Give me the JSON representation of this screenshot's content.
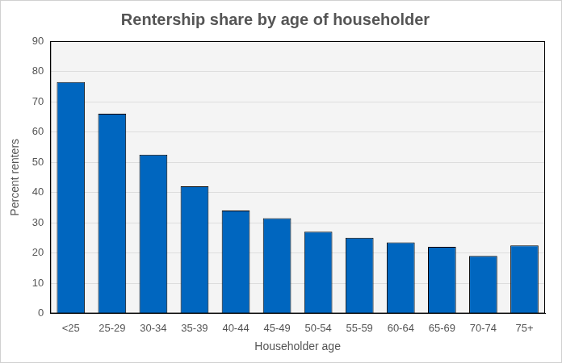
{
  "chart_data": {
    "type": "bar",
    "title": "Rentership share by age of householder",
    "categories": [
      "<25",
      "25-29",
      "30-34",
      "35-39",
      "40-44",
      "45-49",
      "50-54",
      "55-59",
      "60-64",
      "65-69",
      "70-74",
      "75+"
    ],
    "values": [
      76.5,
      66,
      52.5,
      42,
      34,
      31.5,
      27,
      25,
      23.5,
      22,
      19,
      22.5
    ],
    "color": "#0066bf",
    "x_label": "Householder age",
    "y_label": "Percent renters",
    "ylim": [
      0,
      90
    ],
    "yticks": [
      0,
      10,
      20,
      30,
      40,
      50,
      60,
      70,
      80,
      90
    ],
    "grid": true
  }
}
